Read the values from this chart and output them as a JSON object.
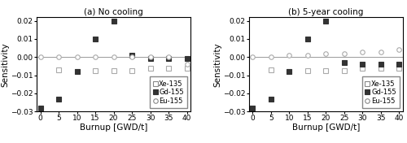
{
  "title_a": "(a) No cooling",
  "title_b": "(b) 5-year cooling",
  "xlabel": "Burnup [GWD/t]",
  "ylabel": "Sensitivity",
  "xlim": [
    -1,
    41
  ],
  "ylim": [
    -0.03,
    0.022
  ],
  "yticks": [
    -0.03,
    -0.02,
    -0.01,
    0.0,
    0.01,
    0.02
  ],
  "xticks": [
    0,
    5,
    10,
    15,
    20,
    25,
    30,
    35,
    40
  ],
  "panel_a": {
    "Xe135": {
      "burnup": [
        5,
        10,
        15,
        20,
        25,
        30,
        35,
        40
      ],
      "sensitivity": [
        -0.007,
        -0.008,
        -0.0075,
        -0.0075,
        -0.0075,
        -0.006,
        -0.006,
        -0.006
      ]
    },
    "Gd155": {
      "burnup": [
        0,
        5,
        10,
        15,
        20,
        25,
        30,
        35,
        40
      ],
      "sensitivity": [
        -0.028,
        -0.023,
        -0.008,
        0.01,
        0.02,
        0.001,
        -0.001,
        -0.001,
        -0.001
      ]
    },
    "Eu155": {
      "burnup": [
        0,
        5,
        10,
        15,
        20,
        25,
        30,
        35,
        40
      ],
      "sensitivity": [
        0.0,
        0.0,
        0.0,
        0.0,
        0.0,
        0.0,
        0.0,
        0.0,
        -0.004
      ]
    }
  },
  "panel_b": {
    "Xe135": {
      "burnup": [
        5,
        10,
        15,
        20,
        25,
        30,
        35,
        40
      ],
      "sensitivity": [
        -0.007,
        -0.008,
        -0.0075,
        -0.0075,
        -0.0075,
        -0.006,
        -0.006,
        -0.006
      ]
    },
    "Gd155": {
      "burnup": [
        0,
        5,
        10,
        15,
        20,
        25,
        30,
        35,
        40
      ],
      "sensitivity": [
        -0.028,
        -0.023,
        -0.008,
        0.01,
        0.02,
        -0.003,
        -0.004,
        -0.004,
        -0.004
      ]
    },
    "Eu155": {
      "burnup": [
        0,
        5,
        10,
        15,
        20,
        25,
        30,
        35,
        40
      ],
      "sensitivity": [
        0.0,
        0.0,
        0.001,
        0.001,
        0.002,
        0.002,
        0.003,
        0.003,
        0.004
      ]
    }
  },
  "marker_xe": "s",
  "marker_gd": "s",
  "marker_eu": "o",
  "color_xe": "#aaaaaa",
  "color_gd": "#333333",
  "color_eu": "#aaaaaa",
  "markersize": 4,
  "hline_color": "#999999",
  "hline_lw": 0.7,
  "tick_fontsize": 6.5,
  "label_fontsize": 7.5,
  "title_fontsize": 7.5,
  "legend_fontsize": 6
}
